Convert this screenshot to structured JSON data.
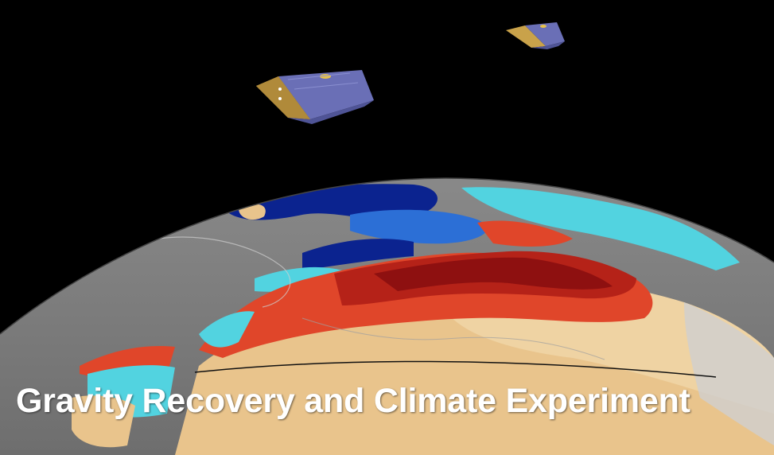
{
  "caption": {
    "title": "Gravity Recovery and Climate Experiment"
  },
  "colors": {
    "space": "#000000",
    "land": "#8c8c8c",
    "satellite_panel": "#6a6fb6",
    "satellite_frame": "#c9a24a",
    "anomaly_dark_red": "#8e1010",
    "anomaly_red": "#e0462a",
    "anomaly_tan": "#e9c48c",
    "anomaly_cyan": "#52d3e0",
    "anomaly_blue": "#2c6fd6",
    "anomaly_navy": "#0b238f"
  },
  "scene_objects": {
    "satellites": [
      "satellite-icon",
      "satellite-icon"
    ],
    "planet": "earth-globe"
  }
}
